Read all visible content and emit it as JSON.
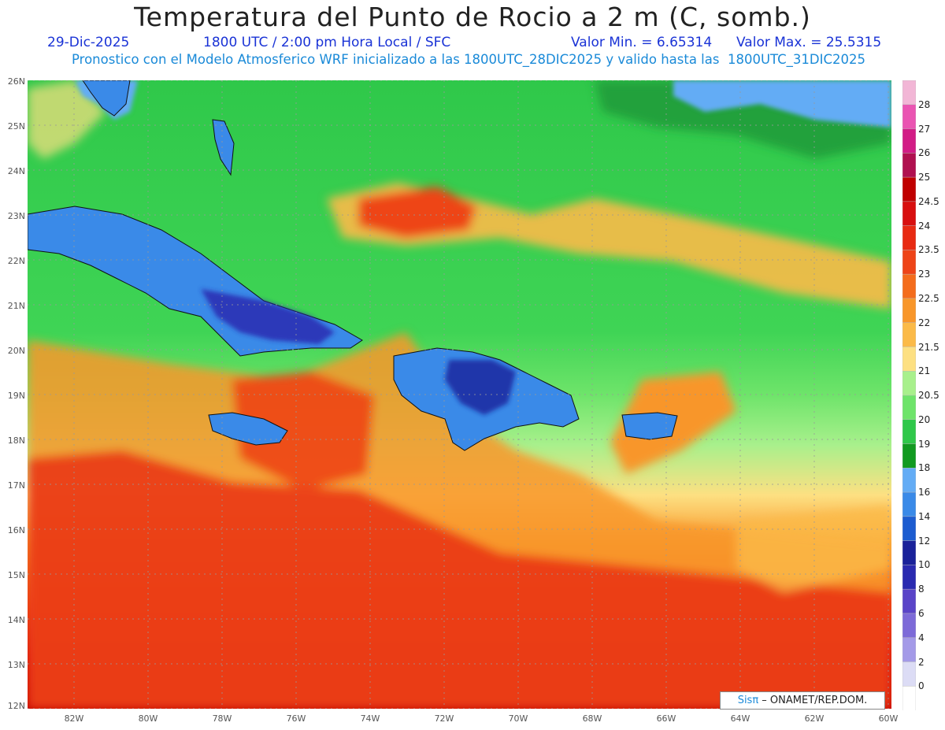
{
  "title": "Temperatura del Punto de Rocio a 2 m (C, somb.)",
  "date": "29-Dic-2025",
  "time_info": "1800 UTC / 2:00 pm Hora Local / SFC",
  "min_label": "Valor Min. = 6.65314",
  "max_label": "Valor Max. = 25.5315",
  "model_info": "Pronostico con el Modelo Atmosferico WRF inicializado a las 1800UTC_28DIC2025 y valido hasta las  1800UTC_31DIC2025",
  "lat_labels": [
    "26N",
    "25N",
    "24N",
    "23N",
    "22N",
    "21N",
    "20N",
    "19N",
    "18N",
    "17N",
    "16N",
    "15N",
    "14N",
    "13N",
    "12N"
  ],
  "lon_labels": [
    "82W",
    "80W",
    "78W",
    "76W",
    "74W",
    "72W",
    "70W",
    "68W",
    "66W",
    "64W",
    "62W",
    "60W"
  ],
  "colorbar": {
    "levels": [
      "28",
      "27",
      "26",
      "25",
      "24.5",
      "24",
      "23.5",
      "23",
      "22.5",
      "22",
      "21.5",
      "21",
      "20.5",
      "20",
      "19",
      "18",
      "16",
      "14",
      "12",
      "10",
      "8",
      "6",
      "4",
      "2",
      "0"
    ],
    "colors": [
      "#f2b6d6",
      "#ea54b2",
      "#d21c86",
      "#b01050",
      "#c00000",
      "#d80f0f",
      "#e82a12",
      "#ee4418",
      "#f46c1c",
      "#f8962a",
      "#fbba48",
      "#fde082",
      "#a8f08c",
      "#6ee46a",
      "#2fc84a",
      "#119a20",
      "#63acf5",
      "#3a8ae8",
      "#1c5cd0",
      "#1a229a",
      "#2a2ab0",
      "#5a44c8",
      "#7d6ad8",
      "#a49ae8",
      "#dcdcf5",
      "#ffffff"
    ]
  },
  "regions": {
    "ocean_n": "#2fc84a",
    "cuba": "#3a8ae8",
    "hispaniola": "#3a8ae8",
    "puerto_rico": "#3a8ae8",
    "jamaica": "#3a8ae8",
    "dry_core": "#2a2ab0",
    "moist_band_s": "#d80f0f",
    "moist_band_mid": "#f8962a"
  },
  "credit": {
    "brand": "Sisπ",
    "text": " – ONAMET/REP.DOM."
  }
}
